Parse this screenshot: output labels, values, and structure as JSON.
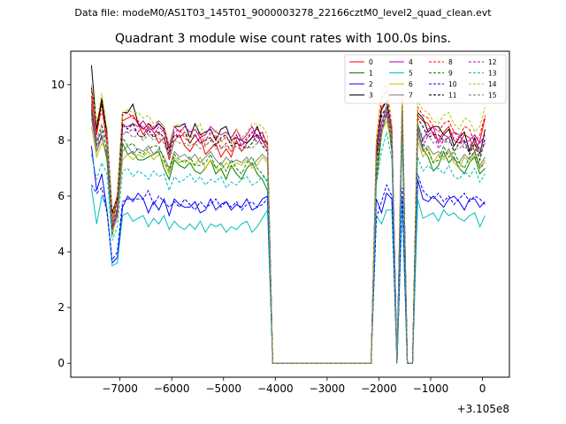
{
  "figure": {
    "suptitle": "Data file: modeM0/AS1T03_145T01_9000003278_22166cztM0_level2_quad_clean.evt"
  },
  "chart_data": {
    "type": "line",
    "title": "Quadrant 3 module wise count rates with 100.0s bins.",
    "xlabel": "",
    "ylabel": "",
    "offset_label": "+3.105e8",
    "xlim": [
      -7950,
      520
    ],
    "ylim": [
      -0.5,
      11.2
    ],
    "xticks": [
      -7000,
      -6000,
      -5000,
      -4000,
      -3000,
      -2000,
      -1000,
      0
    ],
    "xtick_labels": [
      "−7000",
      "−6000",
      "−5000",
      "−4000",
      "−3000",
      "−2000",
      "−1000",
      "0"
    ],
    "yticks": [
      0,
      2,
      4,
      6,
      8,
      10
    ],
    "ytick_labels": [
      "0",
      "2",
      "4",
      "6",
      "8",
      "10"
    ],
    "grid": false,
    "legend_position": "top-right",
    "x_seg1": {
      "start": -7550,
      "step": 100,
      "count": 35
    },
    "x_seg2": {
      "start": -2050,
      "step": 100,
      "count": 22
    },
    "zero_x": [
      -4050,
      -2150
    ],
    "series": [
      {
        "name": "0",
        "color": "#ff0000",
        "dash": false,
        "seg1": [
          9.6,
          8.2,
          9.4,
          7.8,
          5.0,
          5.9,
          8.7,
          8.8,
          8.9,
          8.6,
          8.2,
          8.5,
          8.3,
          7.9,
          8.1,
          7.3,
          8.0,
          8.2,
          7.8,
          7.6,
          7.9,
          8.1,
          7.5,
          7.7,
          7.9,
          7.4,
          7.7,
          7.4,
          8.0,
          7.6,
          7.9,
          8.1,
          8.2,
          8.0,
          7.7
        ],
        "seg2": [
          7.6,
          9.2,
          9.4,
          8.1,
          0,
          9.0,
          0,
          0,
          8.9,
          8.7,
          8.6,
          8.2,
          8.0,
          8.3,
          8.5,
          8.0,
          7.9,
          8.2,
          8.1,
          7.6,
          8.0,
          8.8
        ]
      },
      {
        "name": "1",
        "color": "#008000",
        "dash": false,
        "seg1": [
          9.0,
          7.6,
          8.2,
          7.3,
          4.6,
          5.4,
          7.9,
          7.5,
          7.6,
          7.3,
          7.3,
          7.4,
          7.5,
          7.6,
          7.0,
          6.6,
          7.3,
          7.1,
          7.0,
          7.2,
          6.9,
          6.8,
          7.0,
          7.3,
          6.8,
          7.0,
          6.6,
          7.1,
          6.8,
          6.6,
          7.0,
          7.2,
          6.8,
          6.6,
          6.2
        ],
        "seg2": [
          6.5,
          8.2,
          9.0,
          7.6,
          0,
          8.8,
          0,
          0,
          8.4,
          7.7,
          7.4,
          6.9,
          7.1,
          7.6,
          7.2,
          7.4,
          7.0,
          6.8,
          7.2,
          7.4,
          6.8,
          7.0
        ]
      },
      {
        "name": "2",
        "color": "#0000ff",
        "dash": false,
        "seg1": [
          7.8,
          6.2,
          6.8,
          5.5,
          3.6,
          3.8,
          5.6,
          6.0,
          5.8,
          6.1,
          5.9,
          5.4,
          5.8,
          5.5,
          5.9,
          5.3,
          5.9,
          5.7,
          5.6,
          5.6,
          5.8,
          5.4,
          5.5,
          5.9,
          5.5,
          5.7,
          5.8,
          5.5,
          5.7,
          5.6,
          5.9,
          5.5,
          5.6,
          5.9,
          6.0
        ],
        "seg2": [
          5.9,
          5.4,
          6.1,
          5.9,
          0,
          5.9,
          0,
          0,
          6.6,
          5.9,
          5.8,
          6.0,
          5.8,
          5.6,
          5.9,
          6.0,
          5.8,
          5.5,
          5.9,
          5.9,
          5.6,
          5.8
        ]
      },
      {
        "name": "3",
        "color": "#000000",
        "dash": false,
        "seg1": [
          10.7,
          8.4,
          9.5,
          8.3,
          5.4,
          6.0,
          9.0,
          9.0,
          9.3,
          8.6,
          8.4,
          8.6,
          8.4,
          8.6,
          8.4,
          7.7,
          8.5,
          8.5,
          8.6,
          8.1,
          8.6,
          8.2,
          8.3,
          8.4,
          8.0,
          8.4,
          8.5,
          8.0,
          8.1,
          8.0,
          7.9,
          8.1,
          8.5,
          8.0,
          7.9
        ],
        "seg2": [
          7.6,
          9.1,
          9.4,
          8.4,
          0,
          9.4,
          0,
          0,
          9.0,
          8.8,
          8.3,
          8.5,
          8.5,
          8.2,
          8.4,
          7.8,
          8.1,
          8.3,
          7.6,
          8.1,
          7.5,
          8.4
        ]
      },
      {
        "name": "4",
        "color": "#bf00bf",
        "dash": false,
        "seg1": [
          9.3,
          8.0,
          8.3,
          8.4,
          4.9,
          5.5,
          8.5,
          8.5,
          8.6,
          8.5,
          8.7,
          8.4,
          8.4,
          8.7,
          8.5,
          7.8,
          8.5,
          8.3,
          8.5,
          8.3,
          8.4,
          8.1,
          8.2,
          8.5,
          8.3,
          8.2,
          8.3,
          8.1,
          8.4,
          8.0,
          8.2,
          8.5,
          8.1,
          8.3,
          7.8
        ],
        "seg2": [
          7.4,
          8.6,
          9.2,
          8.5,
          0,
          8.9,
          0,
          0,
          8.5,
          8.0,
          8.4,
          8.5,
          7.9,
          8.2,
          8.1,
          8.3,
          8.2,
          7.9,
          8.0,
          8.2,
          7.9,
          8.2
        ]
      },
      {
        "name": "5",
        "color": "#00bfbf",
        "dash": false,
        "seg1": [
          6.3,
          5.0,
          6.0,
          5.6,
          3.5,
          3.6,
          5.3,
          5.4,
          5.1,
          5.2,
          5.3,
          4.9,
          5.2,
          5.0,
          5.3,
          4.8,
          5.1,
          4.9,
          4.8,
          5.0,
          4.8,
          5.1,
          4.7,
          5.0,
          4.9,
          5.0,
          4.7,
          4.9,
          4.8,
          5.0,
          5.1,
          4.7,
          4.9,
          5.2,
          5.5
        ],
        "seg2": [
          5.3,
          5.0,
          5.5,
          5.5,
          0,
          5.8,
          0,
          0,
          5.9,
          5.2,
          5.3,
          5.4,
          5.1,
          5.5,
          5.3,
          5.4,
          5.2,
          5.1,
          5.3,
          5.4,
          4.9,
          5.3
        ]
      },
      {
        "name": "6",
        "color": "#bfbf00",
        "dash": false,
        "seg1": [
          8.5,
          7.4,
          7.9,
          7.6,
          4.7,
          5.2,
          7.3,
          7.5,
          7.3,
          7.5,
          7.4,
          7.6,
          7.3,
          7.5,
          7.2,
          6.8,
          7.4,
          7.2,
          7.3,
          7.2,
          7.1,
          7.4,
          7.0,
          7.3,
          7.0,
          6.9,
          7.2,
          7.0,
          7.2,
          7.1,
          7.3,
          7.0,
          7.1,
          7.4,
          7.2
        ],
        "seg2": [
          7.0,
          8.3,
          8.7,
          7.8,
          0,
          8.6,
          0,
          0,
          8.0,
          7.4,
          7.7,
          7.2,
          7.5,
          7.3,
          7.6,
          7.2,
          7.0,
          7.4,
          7.2,
          7.5,
          7.0,
          7.3
        ]
      },
      {
        "name": "7",
        "color": "#808080",
        "dash": false,
        "seg1": [
          8.8,
          7.6,
          8.1,
          7.5,
          4.8,
          5.3,
          7.6,
          7.8,
          7.5,
          7.7,
          7.6,
          7.8,
          7.5,
          7.7,
          7.4,
          7.0,
          7.6,
          7.4,
          7.5,
          7.3,
          7.5,
          7.2,
          7.4,
          7.6,
          7.3,
          7.1,
          7.4,
          7.2,
          7.3,
          7.2,
          7.4,
          7.1,
          7.3,
          7.5,
          7.3
        ],
        "seg2": [
          7.3,
          8.4,
          8.9,
          7.9,
          0,
          8.7,
          0,
          0,
          8.2,
          7.6,
          7.8,
          7.5,
          7.6,
          7.4,
          7.7,
          7.3,
          7.2,
          7.5,
          7.3,
          7.6,
          7.1,
          7.4
        ]
      },
      {
        "name": "8",
        "color": "#ff0000",
        "dash": true,
        "seg1": [
          9.8,
          8.3,
          9.1,
          8.0,
          5.1,
          6.0,
          8.9,
          9.0,
          8.8,
          8.7,
          8.4,
          8.6,
          8.5,
          8.2,
          8.4,
          7.6,
          8.3,
          8.4,
          8.1,
          7.9,
          8.2,
          8.3,
          7.8,
          8.0,
          8.2,
          7.7,
          7.9,
          7.6,
          8.2,
          7.8,
          8.1,
          8.3,
          8.4,
          8.2,
          7.9
        ],
        "seg2": [
          7.9,
          9.5,
          9.8,
          8.4,
          0,
          9.6,
          0,
          0,
          9.2,
          8.9,
          8.8,
          8.5,
          8.3,
          8.6,
          8.7,
          8.3,
          8.1,
          8.5,
          8.4,
          7.9,
          8.2,
          8.9
        ]
      },
      {
        "name": "9",
        "color": "#008000",
        "dash": true,
        "seg1": [
          9.2,
          7.8,
          8.5,
          7.6,
          4.8,
          5.6,
          8.1,
          7.8,
          7.9,
          7.6,
          7.5,
          7.7,
          7.8,
          7.8,
          7.3,
          6.9,
          7.5,
          7.3,
          7.2,
          7.4,
          7.1,
          7.1,
          7.2,
          7.5,
          7.0,
          7.2,
          6.9,
          7.3,
          7.0,
          6.8,
          7.2,
          7.4,
          7.0,
          6.8,
          6.5
        ],
        "seg2": [
          6.8,
          8.4,
          9.2,
          7.8,
          0,
          9.0,
          0,
          0,
          8.6,
          7.9,
          7.6,
          7.2,
          7.3,
          7.8,
          7.4,
          7.6,
          7.2,
          7.0,
          7.4,
          7.6,
          7.0,
          7.2
        ]
      },
      {
        "name": "10",
        "color": "#0000ff",
        "dash": true,
        "seg1": [
          6.4,
          6.1,
          6.3,
          5.4,
          3.7,
          4.0,
          5.8,
          5.9,
          5.9,
          5.9,
          5.9,
          6.2,
          5.7,
          6.0,
          5.8,
          5.6,
          5.8,
          5.6,
          5.9,
          5.7,
          5.5,
          5.8,
          5.6,
          5.7,
          5.9,
          5.6,
          5.8,
          5.6,
          5.8,
          5.5,
          5.7,
          5.8,
          5.6,
          5.7,
          5.9
        ],
        "seg2": [
          5.2,
          5.8,
          6.4,
          6.0,
          0,
          6.3,
          0,
          0,
          6.8,
          6.2,
          6.0,
          5.9,
          6.1,
          5.8,
          6.0,
          5.7,
          5.9,
          6.1,
          5.8,
          6.0,
          5.9,
          5.7
        ]
      },
      {
        "name": "11",
        "color": "#000000",
        "dash": true,
        "seg1": [
          9.9,
          8.6,
          9.3,
          8.2,
          5.3,
          5.9,
          8.6,
          8.4,
          8.6,
          8.2,
          8.1,
          8.4,
          8.1,
          8.3,
          8.1,
          7.5,
          8.2,
          8.1,
          8.3,
          7.9,
          8.2,
          7.9,
          8.0,
          8.1,
          7.8,
          8.1,
          8.2,
          7.8,
          7.9,
          7.8,
          7.7,
          7.9,
          8.2,
          7.8,
          7.6
        ],
        "seg2": [
          7.4,
          8.9,
          9.2,
          8.2,
          0,
          9.1,
          0,
          0,
          8.8,
          8.5,
          8.1,
          8.2,
          8.2,
          8.0,
          8.1,
          7.6,
          7.9,
          8.0,
          7.5,
          7.9,
          7.3,
          8.1
        ]
      },
      {
        "name": "12",
        "color": "#bf00bf",
        "dash": true,
        "seg1": [
          9.1,
          7.8,
          8.1,
          8.2,
          4.8,
          5.4,
          8.3,
          8.3,
          8.4,
          8.3,
          8.5,
          8.2,
          8.2,
          8.5,
          8.3,
          7.6,
          8.3,
          8.1,
          8.3,
          8.1,
          8.2,
          7.9,
          8.0,
          8.3,
          8.1,
          8.0,
          8.1,
          7.9,
          8.2,
          7.8,
          8.0,
          8.3,
          7.9,
          8.1,
          7.6
        ],
        "seg2": [
          7.2,
          8.4,
          9.0,
          8.3,
          0,
          8.7,
          0,
          0,
          8.3,
          7.8,
          8.2,
          8.3,
          7.7,
          8.0,
          7.9,
          8.1,
          8.0,
          7.7,
          7.8,
          8.0,
          7.7,
          8.0
        ]
      },
      {
        "name": "13",
        "color": "#00bfbf",
        "dash": true,
        "seg1": [
          7.5,
          6.6,
          7.2,
          6.8,
          4.4,
          4.9,
          6.9,
          7.0,
          6.7,
          6.9,
          6.8,
          6.6,
          6.9,
          6.7,
          6.8,
          6.2,
          6.7,
          6.5,
          6.6,
          6.8,
          6.5,
          6.7,
          6.4,
          6.6,
          6.5,
          6.7,
          6.3,
          6.5,
          6.4,
          6.6,
          6.7,
          6.4,
          6.5,
          6.7,
          6.6
        ],
        "seg2": [
          6.4,
          7.6,
          8.3,
          7.3,
          0,
          8.0,
          0,
          0,
          7.4,
          6.9,
          7.1,
          6.9,
          7.0,
          6.8,
          7.1,
          6.7,
          6.6,
          6.9,
          6.7,
          7.0,
          6.5,
          6.8
        ]
      },
      {
        "name": "14",
        "color": "#bfbf00",
        "dash": true,
        "seg1": [
          10.0,
          8.6,
          9.7,
          8.4,
          5.2,
          6.1,
          9.0,
          9.1,
          9.0,
          9.0,
          8.8,
          8.9,
          8.6,
          8.7,
          8.5,
          7.8,
          8.5,
          8.6,
          8.3,
          8.1,
          8.4,
          8.6,
          8.0,
          8.2,
          8.4,
          7.9,
          8.2,
          7.9,
          8.4,
          8.1,
          8.3,
          8.6,
          8.6,
          8.5,
          8.2
        ],
        "seg2": [
          8.1,
          9.7,
          10.0,
          8.6,
          0,
          9.8,
          0,
          0,
          9.4,
          9.1,
          9.0,
          8.7,
          8.6,
          8.9,
          9.0,
          8.6,
          8.4,
          8.8,
          8.7,
          8.3,
          8.5,
          9.2
        ]
      },
      {
        "name": "15",
        "color": "#808080",
        "dash": true,
        "seg1": [
          9.4,
          8.0,
          8.6,
          7.9,
          5.0,
          5.7,
          8.2,
          8.3,
          8.1,
          8.2,
          8.0,
          8.2,
          8.0,
          8.1,
          7.9,
          7.4,
          8.0,
          7.9,
          7.9,
          7.8,
          7.9,
          7.7,
          7.8,
          8.0,
          7.7,
          7.7,
          7.8,
          7.6,
          7.8,
          7.6,
          7.8,
          7.7,
          7.9,
          7.9,
          7.7
        ],
        "seg2": [
          7.6,
          8.8,
          9.2,
          8.2,
          0,
          9.0,
          0,
          0,
          8.6,
          8.1,
          8.2,
          7.9,
          8.0,
          7.9,
          8.1,
          7.7,
          7.7,
          7.9,
          7.7,
          8.0,
          7.5,
          7.9
        ]
      }
    ]
  }
}
